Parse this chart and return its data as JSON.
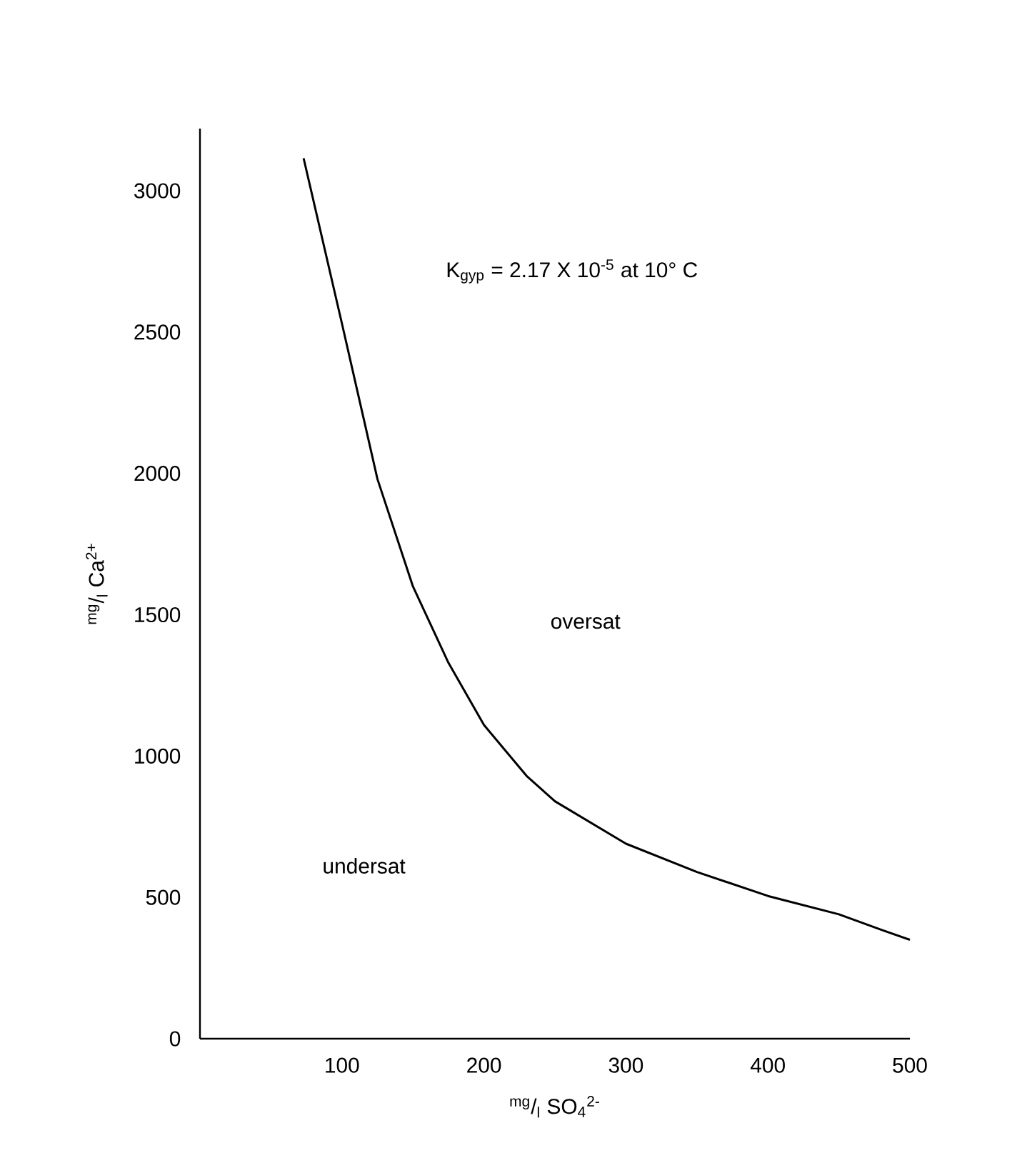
{
  "chart_data": {
    "type": "line",
    "xlabel": "$^{mg}$/$_{l}$   SO$_{4}$$^{2-}$",
    "ylabel": "$^{mg}$/$_{l}$   Ca$^{2+}$",
    "series": [
      {
        "color": "#000000",
        "x": [
          73,
          100,
          125,
          150,
          175,
          200,
          230,
          250,
          300,
          350,
          400,
          450,
          480,
          500
        ],
        "values": [
          3115,
          2530,
          1980,
          1600,
          1330,
          1110,
          930,
          840,
          690,
          590,
          505,
          440,
          385,
          350
        ]
      }
    ],
    "xlim": [
      0,
      500
    ],
    "ylim": [
      0,
      3220
    ],
    "xticks": [
      100,
      200,
      300,
      400,
      500
    ],
    "yticks": [
      0,
      500,
      1000,
      1500,
      2000,
      2500,
      3000
    ],
    "grid": false,
    "marker": "none",
    "line_style": "solid",
    "annotations": [
      "K$_{gyp}$ = 2.17 X 10$^{-5}$ at 10° C",
      "oversat",
      "undersat"
    ]
  }
}
